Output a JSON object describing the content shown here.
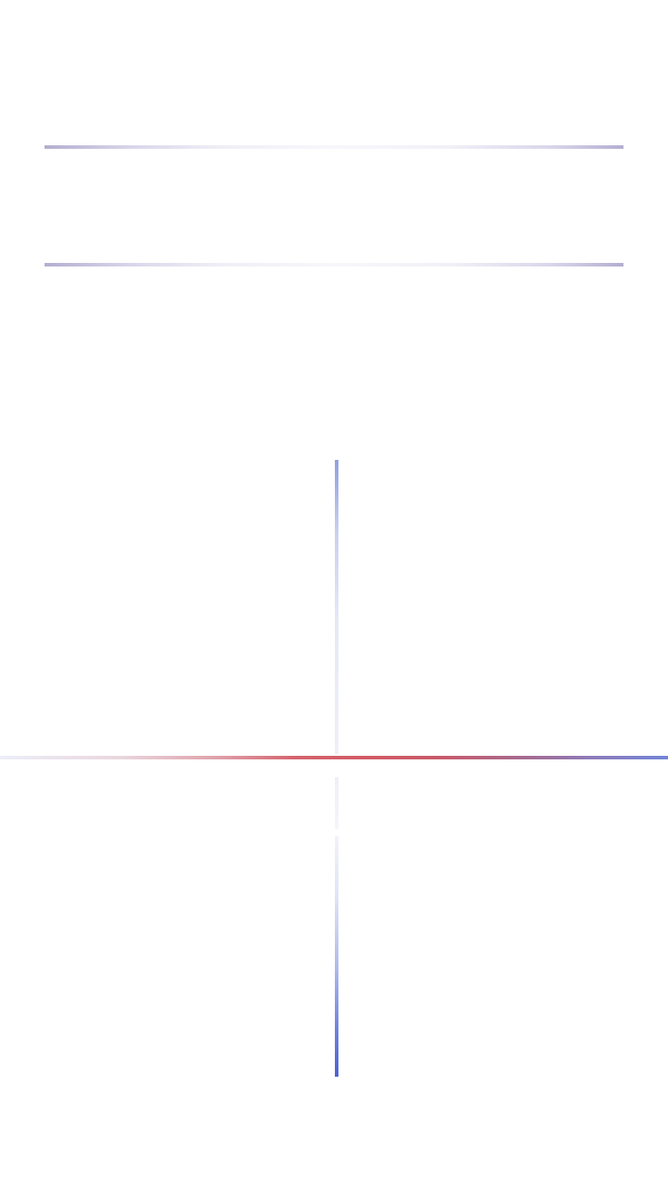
{
  "screen": {
    "title": ""
  },
  "colors": {
    "rule_edge": "#b3aed0",
    "rule_center": "#f7f7fb",
    "axis_red": "#d15a63",
    "axis_blue": "#7184d8",
    "vline_top": "#8f9fe0",
    "vline_bottom": "#4a60d4"
  }
}
